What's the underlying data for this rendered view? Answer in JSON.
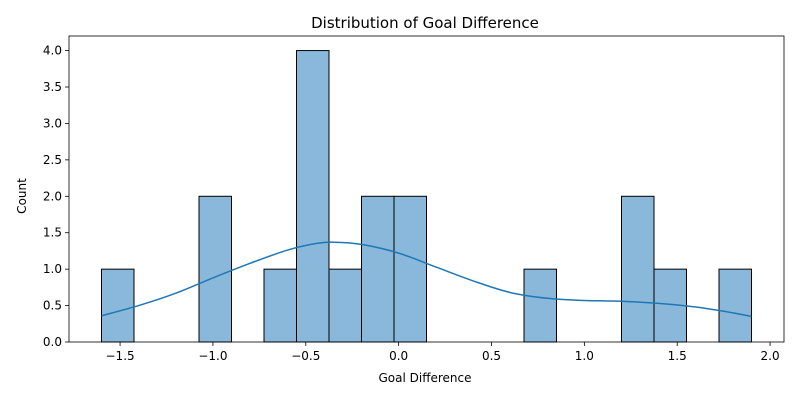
{
  "chart_data": {
    "type": "bar",
    "subtype": "histogram-with-kde",
    "title": "Distribution of Goal Difference",
    "xlabel": "Goal Difference",
    "ylabel": "Count",
    "xlim": [
      -1.775,
      2.075
    ],
    "ylim": [
      0,
      4.2
    ],
    "xticks": [
      -1.5,
      -1.0,
      -0.5,
      0.0,
      0.5,
      1.0,
      1.5,
      2.0
    ],
    "xtick_labels": [
      "−1.5",
      "−1.0",
      "−0.5",
      "0.0",
      "0.5",
      "1.0",
      "1.5",
      "2.0"
    ],
    "yticks": [
      0,
      0.5,
      1,
      1.5,
      2,
      2.5,
      3,
      3.5,
      4
    ],
    "ytick_labels": [
      "0.0",
      "0.5",
      "1.0",
      "1.5",
      "2.0",
      "2.5",
      "3.0",
      "3.5",
      "4.0"
    ],
    "grid": false,
    "bar_color": "#8ab8da",
    "bar_edge_color": "#000000",
    "kde_color": "#1f77b4",
    "bins": [
      {
        "x0": -1.6,
        "x1": -1.425,
        "count": 1
      },
      {
        "x0": -1.425,
        "x1": -1.25,
        "count": 0
      },
      {
        "x0": -1.25,
        "x1": -1.075,
        "count": 0
      },
      {
        "x0": -1.075,
        "x1": -0.9,
        "count": 2
      },
      {
        "x0": -0.9,
        "x1": -0.725,
        "count": 0
      },
      {
        "x0": -0.725,
        "x1": -0.55,
        "count": 1
      },
      {
        "x0": -0.55,
        "x1": -0.375,
        "count": 4
      },
      {
        "x0": -0.375,
        "x1": -0.2,
        "count": 1
      },
      {
        "x0": -0.2,
        "x1": -0.025,
        "count": 2
      },
      {
        "x0": -0.025,
        "x1": 0.15,
        "count": 2
      },
      {
        "x0": 0.15,
        "x1": 0.325,
        "count": 0
      },
      {
        "x0": 0.325,
        "x1": 0.5,
        "count": 0
      },
      {
        "x0": 0.5,
        "x1": 0.675,
        "count": 0
      },
      {
        "x0": 0.675,
        "x1": 0.85,
        "count": 1
      },
      {
        "x0": 0.85,
        "x1": 1.025,
        "count": 0
      },
      {
        "x0": 1.025,
        "x1": 1.2,
        "count": 0
      },
      {
        "x0": 1.2,
        "x1": 1.375,
        "count": 2
      },
      {
        "x0": 1.375,
        "x1": 1.55,
        "count": 1
      },
      {
        "x0": 1.55,
        "x1": 1.725,
        "count": 0
      },
      {
        "x0": 1.725,
        "x1": 1.9,
        "count": 1
      }
    ],
    "kde": [
      {
        "x": -1.6,
        "y": 0.36
      },
      {
        "x": -1.4,
        "y": 0.5
      },
      {
        "x": -1.2,
        "y": 0.67
      },
      {
        "x": -1.0,
        "y": 0.88
      },
      {
        "x": -0.8,
        "y": 1.08
      },
      {
        "x": -0.6,
        "y": 1.26
      },
      {
        "x": -0.45,
        "y": 1.35
      },
      {
        "x": -0.35,
        "y": 1.37
      },
      {
        "x": -0.2,
        "y": 1.34
      },
      {
        "x": 0.0,
        "y": 1.22
      },
      {
        "x": 0.2,
        "y": 1.03
      },
      {
        "x": 0.4,
        "y": 0.84
      },
      {
        "x": 0.6,
        "y": 0.68
      },
      {
        "x": 0.8,
        "y": 0.6
      },
      {
        "x": 1.0,
        "y": 0.57
      },
      {
        "x": 1.2,
        "y": 0.56
      },
      {
        "x": 1.4,
        "y": 0.53
      },
      {
        "x": 1.6,
        "y": 0.48
      },
      {
        "x": 1.8,
        "y": 0.4
      },
      {
        "x": 1.9,
        "y": 0.35
      }
    ]
  }
}
